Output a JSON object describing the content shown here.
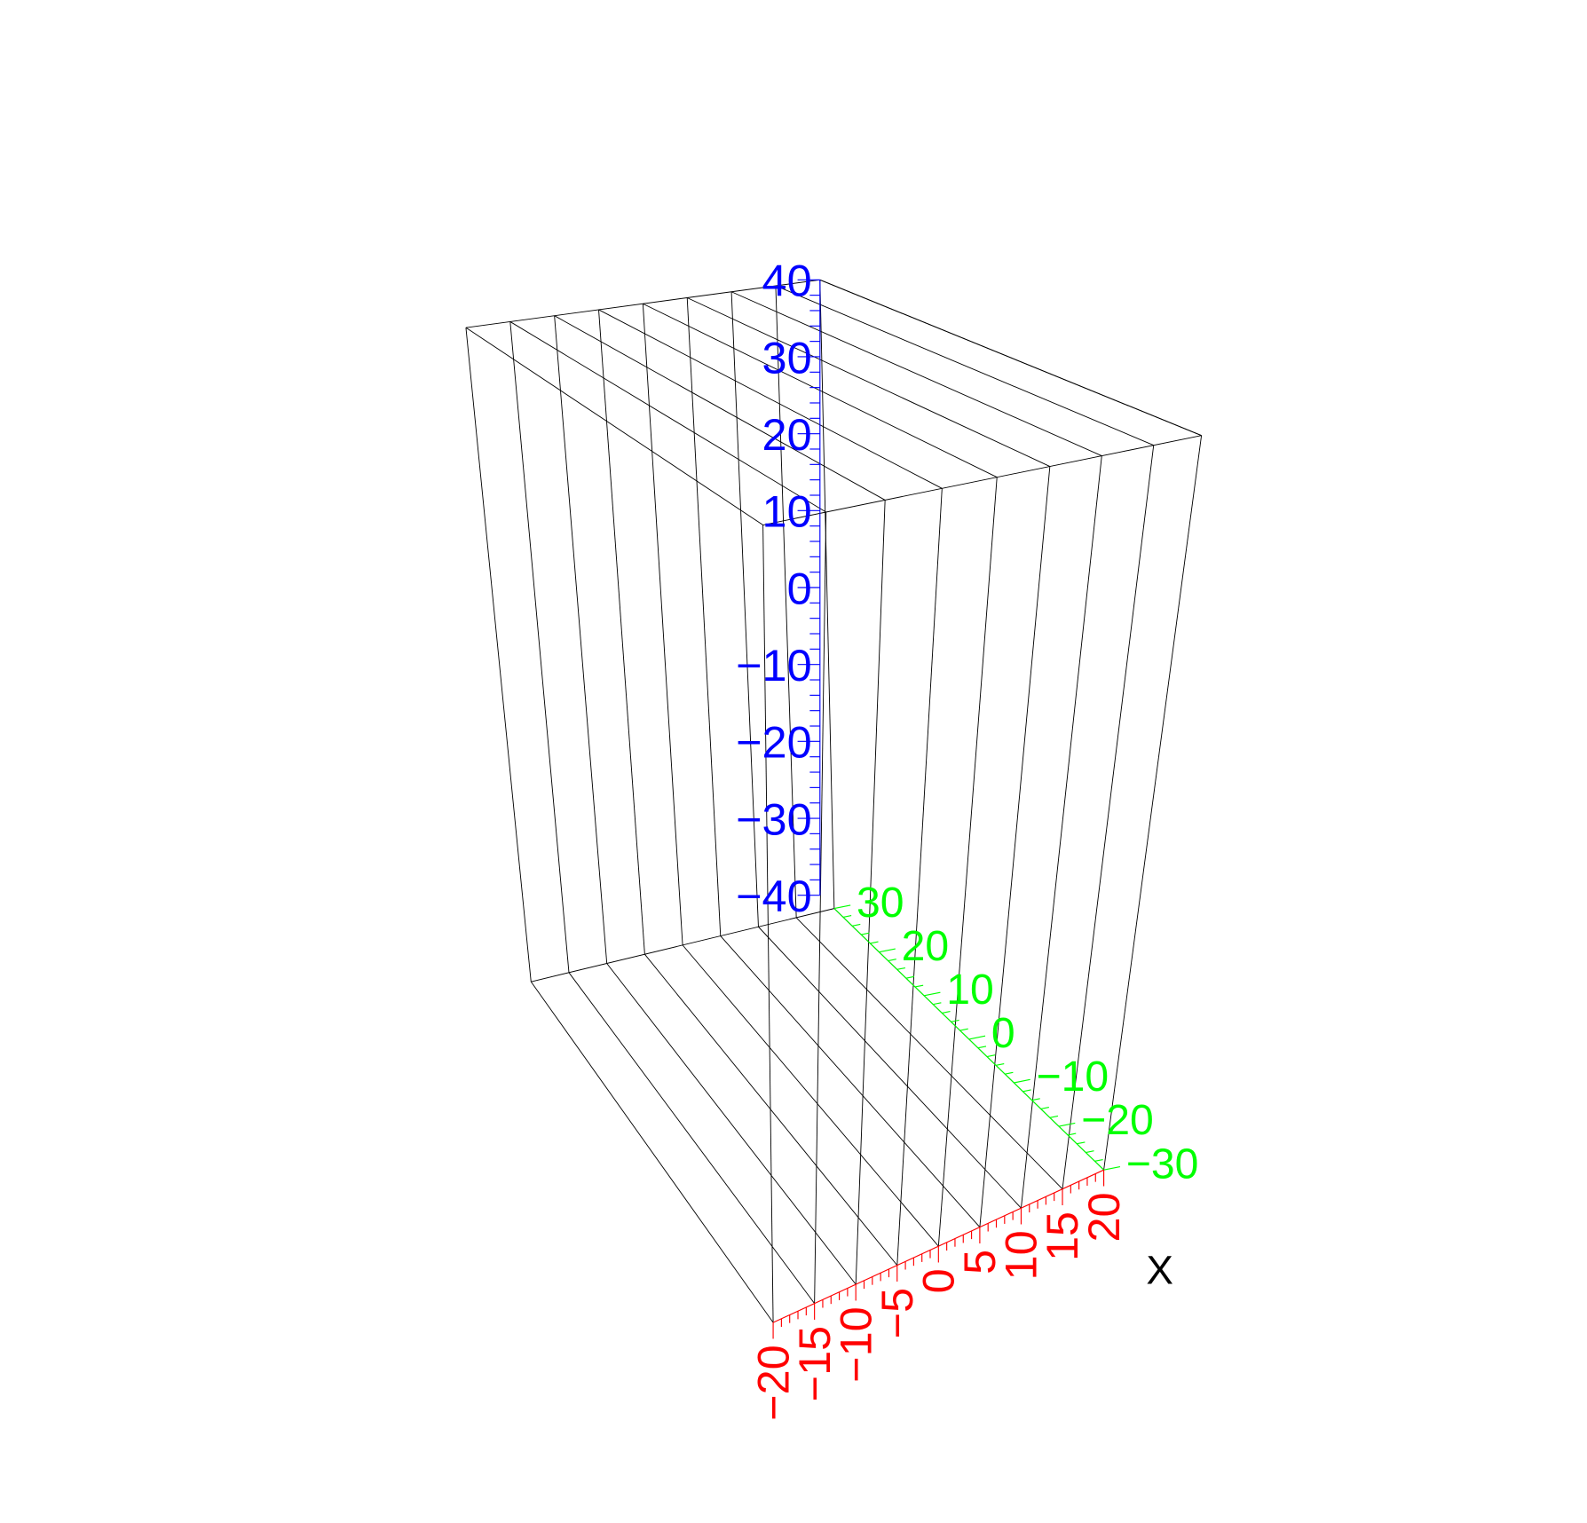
{
  "chart_data": {
    "type": "surface3d",
    "title": "",
    "x_axis": {
      "title": "X",
      "range": [
        -20,
        20
      ],
      "ticks": [
        -20,
        -15,
        -10,
        -5,
        0,
        5,
        10,
        15,
        20
      ],
      "tick_labels": [
        "−20",
        "−15",
        "−10",
        "−5",
        "0",
        "5",
        "10",
        "15",
        "20"
      ],
      "color": "#ff0000"
    },
    "y_axis": {
      "title": "",
      "range": [
        -30,
        30
      ],
      "ticks": [
        30,
        20,
        10,
        0,
        -10,
        -20,
        -30
      ],
      "tick_labels": [
        "30",
        "20",
        "10",
        "0",
        "−10",
        "−20",
        "−30"
      ],
      "color": "#00ff00"
    },
    "z_axis": {
      "title": "",
      "range": [
        -40,
        40
      ],
      "ticks": [
        40,
        30,
        20,
        10,
        0,
        -10,
        -20,
        -30,
        -40
      ],
      "tick_labels": [
        "40",
        "30",
        "20",
        "10",
        "0",
        "−10",
        "−20",
        "−30",
        "−40"
      ],
      "color": "#0000ff"
    },
    "mesh_x_lines": [
      -20,
      -15,
      -10,
      -5,
      0,
      5,
      10,
      15,
      20
    ],
    "mesh_color": "#000000",
    "grid": false,
    "legend": "none"
  }
}
